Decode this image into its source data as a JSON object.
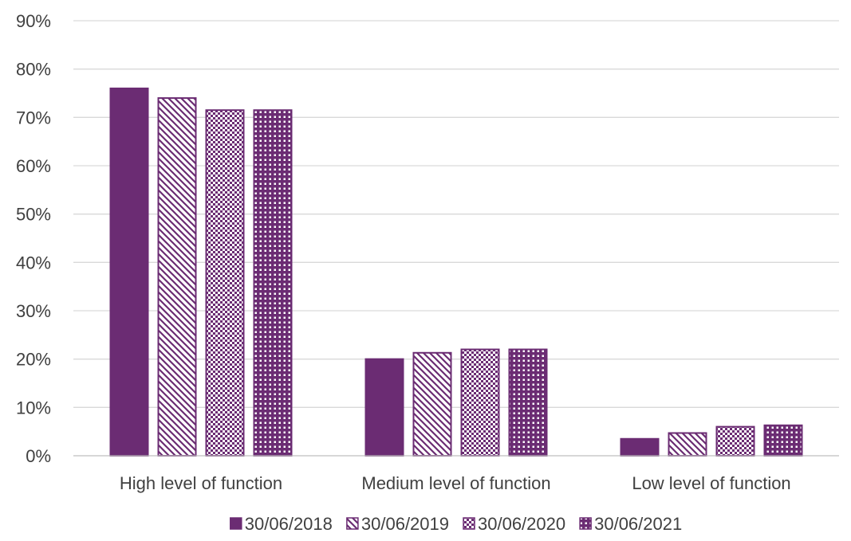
{
  "chart_data": {
    "type": "bar",
    "categories": [
      "High level of function",
      "Medium level of function",
      "Low level of function"
    ],
    "series": [
      {
        "name": "30/06/2018",
        "values": [
          76,
          20,
          3.5
        ],
        "pattern": "solid"
      },
      {
        "name": "30/06/2019",
        "values": [
          74,
          21.3,
          4.7
        ],
        "pattern": "diagonal"
      },
      {
        "name": "30/06/2020",
        "values": [
          71.5,
          22,
          6
        ],
        "pattern": "checker"
      },
      {
        "name": "30/06/2021",
        "values": [
          71.5,
          22,
          6.3
        ],
        "pattern": "dots"
      }
    ],
    "ylim": [
      0,
      90
    ],
    "ytick_step": 10,
    "ytick_format": "percent",
    "grid": true,
    "legend_position": "bottom",
    "title": "",
    "xlabel": "",
    "ylabel": ""
  },
  "colors": {
    "bar": "#6b2c73",
    "grid": "#d9d9d9",
    "axis": "#bfbfbf",
    "text": "#404040"
  }
}
